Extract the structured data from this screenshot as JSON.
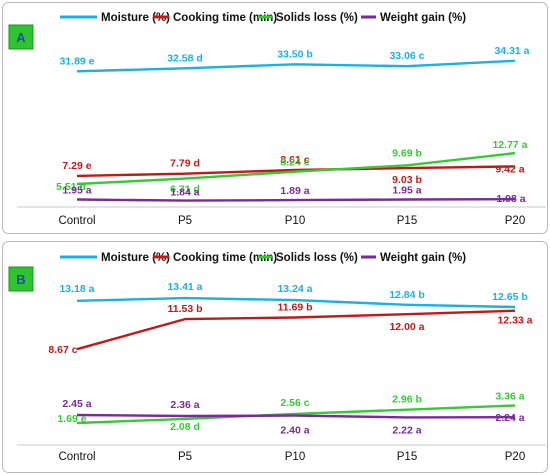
{
  "chart_data": [
    {
      "type": "line",
      "panel_label": "A",
      "categories": [
        "Control",
        "P5",
        "P10",
        "P15",
        "P20"
      ],
      "legend": {
        "placement": "top",
        "entries": [
          "Moisture (%)",
          "Cooking time (min)",
          "Solids loss (%)",
          "Weight gain (%)"
        ]
      },
      "grid": false,
      "series": [
        {
          "name": "Moisture (%)",
          "color": "#1ab0e6",
          "values": [
            31.89,
            32.58,
            33.5,
            33.06,
            34.31
          ],
          "labels": [
            "31.89 e",
            "32.58 d",
            "33.50 b",
            "33.06 c",
            "34.31 a"
          ]
        },
        {
          "name": "Cooking time (min)",
          "color": "#c41818",
          "values": [
            7.29,
            7.79,
            8.61,
            9.03,
            9.42
          ],
          "labels": [
            "7.29 e",
            "7.79 d",
            "8.61 c",
            "9.03 b",
            "9.42 a"
          ]
        },
        {
          "name": "Solids loss (%)",
          "color": "#33cc33",
          "values": [
            5.51,
            6.71,
            8.24,
            9.69,
            12.77
          ],
          "labels": [
            "5.51 d",
            "6.71 d",
            "8.24 c",
            "9.69 b",
            "12.77 a"
          ]
        },
        {
          "name": "Weight gain (%)",
          "color": "#7a2a99",
          "values": [
            1.95,
            1.84,
            1.89,
            1.95,
            1.98
          ],
          "labels": [
            "1.95 a",
            "1.84 a",
            "1.89 a",
            "1.95 a",
            "1.98 a"
          ]
        }
      ]
    },
    {
      "type": "line",
      "panel_label": "B",
      "categories": [
        "Control",
        "P5",
        "P10",
        "P15",
        "P20"
      ],
      "legend": {
        "placement": "top",
        "entries": [
          "Moisture (%)",
          "Cooking time (min)",
          "Solids loss (%)",
          "Weight gain (%)"
        ]
      },
      "grid": false,
      "series": [
        {
          "name": "Moisture (%)",
          "color": "#1ab0e6",
          "values": [
            13.18,
            13.41,
            13.24,
            12.84,
            12.65
          ],
          "labels": [
            "13.18 a",
            "13.41 a",
            "13.24 a",
            "12.84 b",
            "12.65 b"
          ]
        },
        {
          "name": "Cooking time (min)",
          "color": "#c41818",
          "values": [
            8.67,
            11.53,
            11.69,
            12.0,
            12.33
          ],
          "labels": [
            "8.67 c",
            "11.53 b",
            "11.69 b",
            "12.00 a",
            "12.33 a"
          ]
        },
        {
          "name": "Solids loss (%)",
          "color": "#33cc33",
          "values": [
            1.69,
            2.08,
            2.56,
            2.96,
            3.36
          ],
          "labels": [
            "1.69 e",
            "2.08 d",
            "2.56 c",
            "2.96 b",
            "3.36 a"
          ]
        },
        {
          "name": "Weight gain (%)",
          "color": "#7a2a99",
          "values": [
            2.45,
            2.36,
            2.4,
            2.22,
            2.24
          ],
          "labels": [
            "2.45 a",
            "2.36 a",
            "2.40 a",
            "2.22 a",
            "2.24 a"
          ]
        }
      ]
    }
  ]
}
